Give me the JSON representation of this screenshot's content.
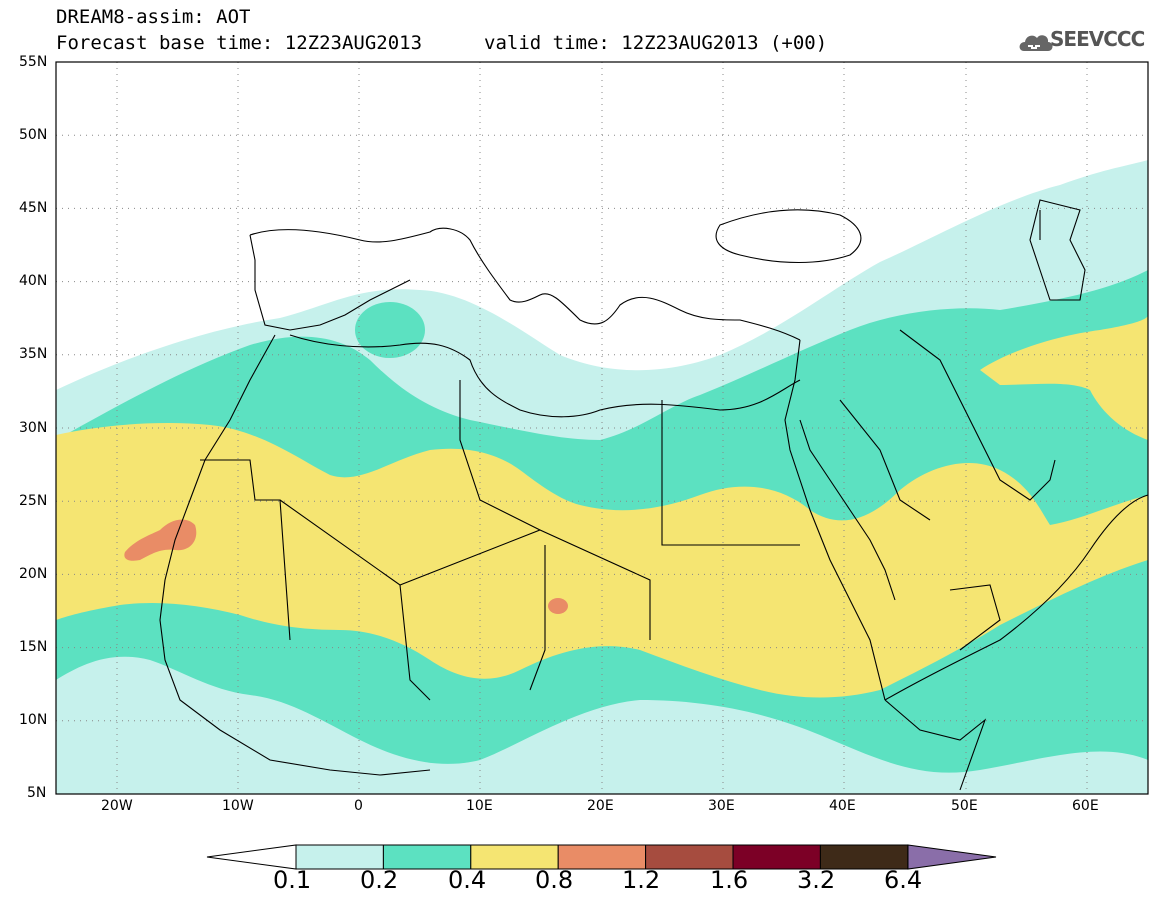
{
  "header": {
    "model_line": "DREAM8-assim: AOT",
    "base_time": "Forecast base time: 12Z23AUG2013",
    "valid_time": "valid time: 12Z23AUG2013 (+00)",
    "logo_text": "SEEVCCC"
  },
  "map": {
    "lat_labels": [
      "55N",
      "50N",
      "45N",
      "40N",
      "35N",
      "30N",
      "25N",
      "20N",
      "15N",
      "10N",
      "5N"
    ],
    "lon_labels": [
      "20W",
      "10W",
      "0",
      "10E",
      "20E",
      "30E",
      "40E",
      "50E",
      "60E"
    ],
    "colors": {
      "c01": "#c6f1ec",
      "c02": "#5ce1c1",
      "c04": "#f5e572",
      "c08": "#e98c66",
      "c12": "#a64c3f",
      "c16": "#7c0026",
      "c32": "#3e2a18",
      "c64": "#8a6ea9"
    }
  },
  "colorbar": {
    "labels": [
      "0.1",
      "0.2",
      "0.4",
      "0.8",
      "1.2",
      "1.6",
      "3.2",
      "6.4"
    ],
    "colors": [
      "#c6f1ec",
      "#5ce1c1",
      "#f5e572",
      "#e98c66",
      "#a64c3f",
      "#7c0026",
      "#3e2a18"
    ],
    "under_color": "#ffffff",
    "over_color": "#8a6ea9"
  }
}
